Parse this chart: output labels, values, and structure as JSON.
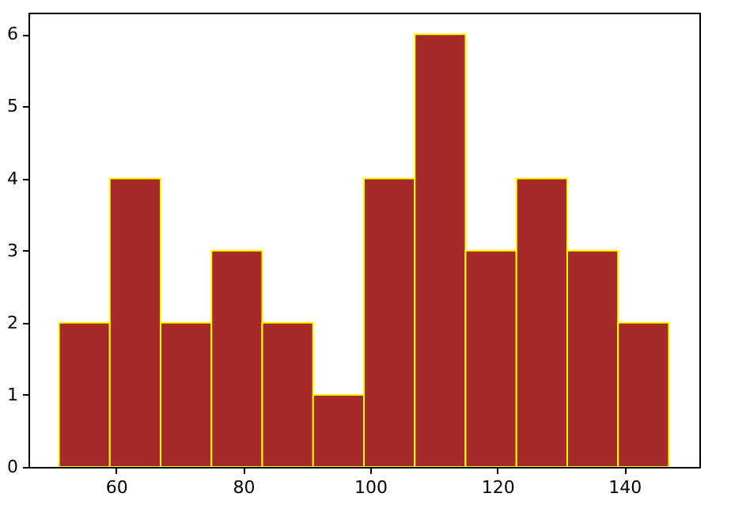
{
  "chart_data": {
    "type": "histogram",
    "bins": [
      51,
      59,
      67,
      75,
      83,
      91,
      99,
      107,
      115,
      123,
      131,
      139,
      147
    ],
    "values": [
      2,
      4,
      2,
      3,
      2,
      1,
      4,
      6,
      3,
      4,
      3,
      2
    ],
    "color": "#a52a2a",
    "xlim": [
      46.2,
      151.8
    ],
    "xticks": [
      60,
      80,
      100,
      120,
      140
    ],
    "ylim": [
      0,
      6.3
    ],
    "yticks": [
      0,
      1,
      2,
      3,
      4,
      5,
      6
    ],
    "grid": false
  }
}
